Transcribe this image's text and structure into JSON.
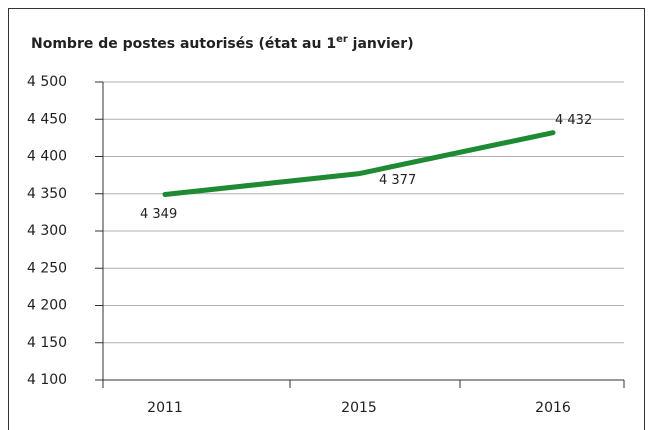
{
  "chart_data": {
    "type": "line",
    "title": {
      "text": "Nombre de postes autorisés (état au 1",
      "superscript": "er",
      "after": " janvier)"
    },
    "categories": [
      "2011",
      "2015",
      "2016"
    ],
    "series": [
      {
        "color": "#1e8a34",
        "values": [
          4349,
          4377,
          4432
        ],
        "value_labels": [
          "4 349",
          "4 377",
          "4 432"
        ]
      }
    ],
    "ylim": [
      4100,
      4500
    ],
    "yticks": [
      {
        "value": 4100,
        "label": "4 100"
      },
      {
        "value": 4150,
        "label": "4 150"
      },
      {
        "value": 4200,
        "label": "4 200"
      },
      {
        "value": 4250,
        "label": "4 250"
      },
      {
        "value": 4300,
        "label": "4 300"
      },
      {
        "value": 4350,
        "label": "4 350"
      },
      {
        "value": 4400,
        "label": "4 400"
      },
      {
        "value": 4450,
        "label": "4 450"
      },
      {
        "value": 4500,
        "label": "4 500"
      }
    ],
    "grid": true
  }
}
